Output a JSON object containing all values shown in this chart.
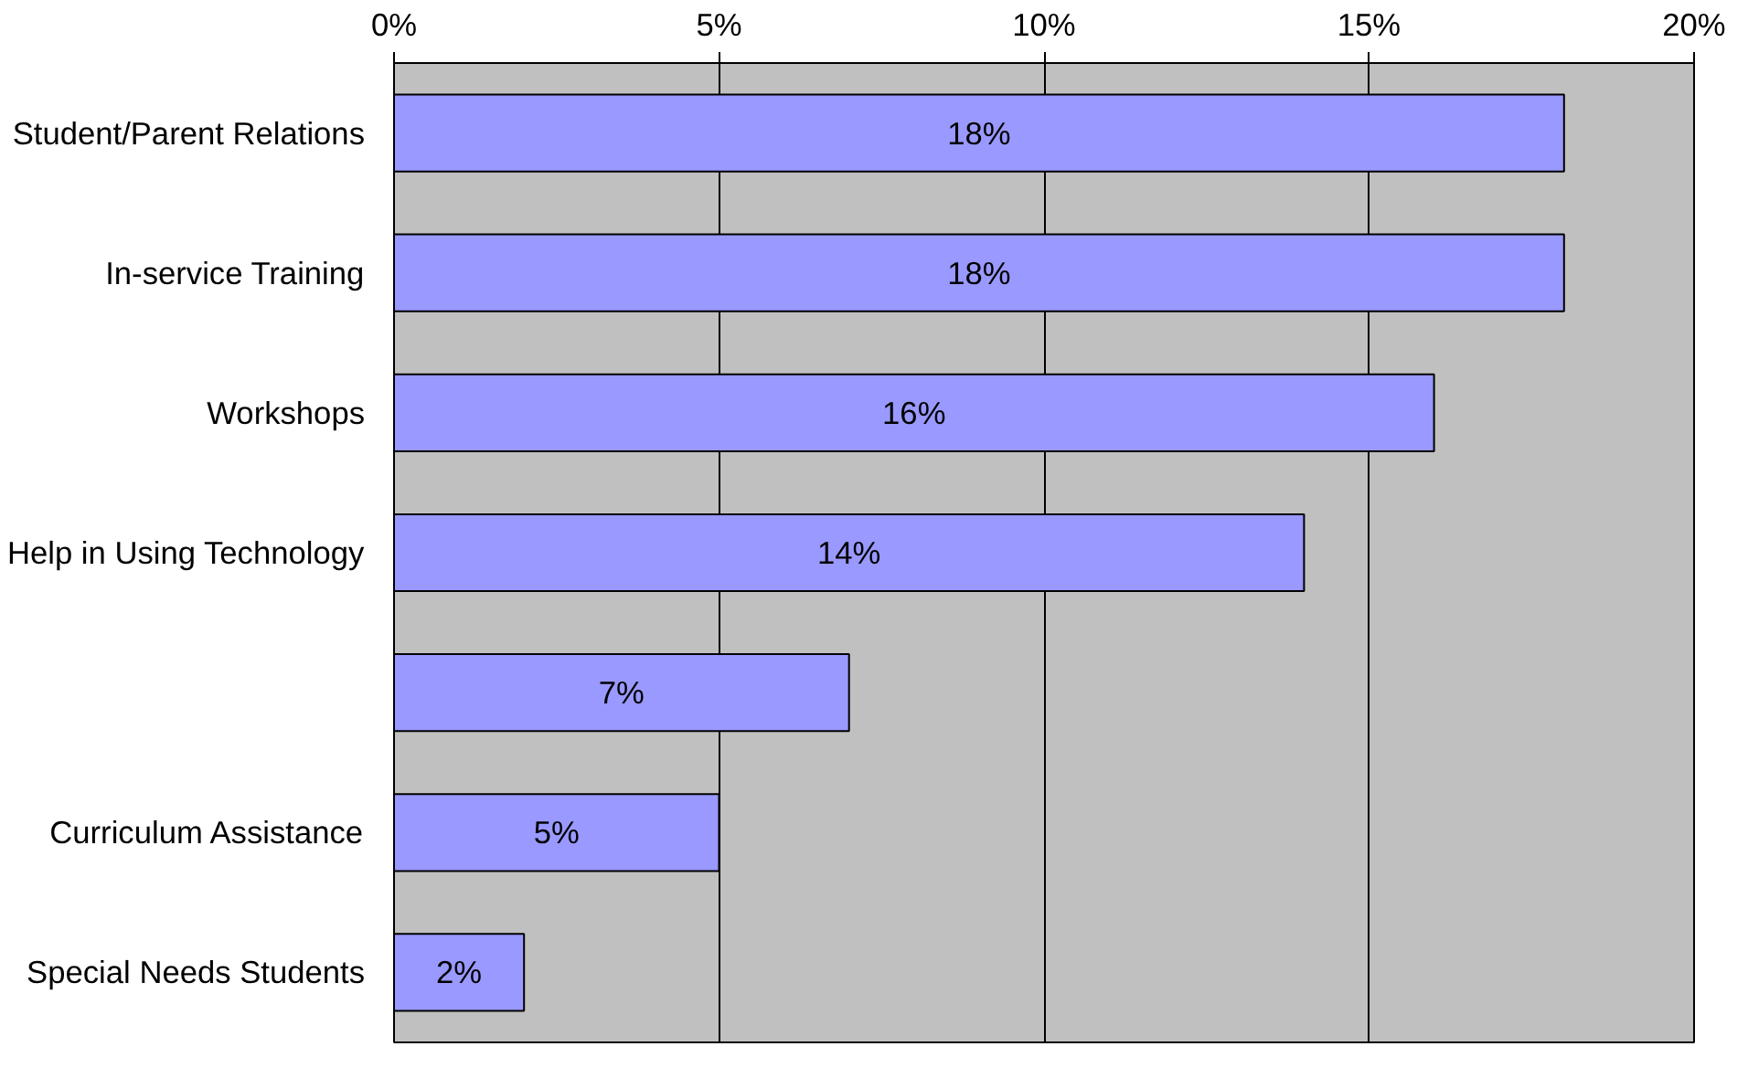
{
  "chart_data": {
    "type": "bar",
    "orientation": "horizontal",
    "categories": [
      "Student/Parent Relations",
      "In-service Training",
      "Workshops",
      "Help in Using Technology",
      null,
      "Curriculum Assistance",
      "Special Needs Students"
    ],
    "values": [
      18,
      18,
      16,
      14,
      7,
      5,
      2
    ],
    "value_labels": [
      "18%",
      "18%",
      "16%",
      "14%",
      "7%",
      "5%",
      "2%"
    ],
    "color": "#9999ff",
    "xlim": [
      0,
      20
    ],
    "xticks": [
      {
        "value": 0,
        "label": "0%"
      },
      {
        "value": 5,
        "label": "5%"
      },
      {
        "value": 10,
        "label": "10%"
      },
      {
        "value": 15,
        "label": "15%"
      },
      {
        "value": 20,
        "label": "20%"
      }
    ],
    "grid": "x"
  }
}
